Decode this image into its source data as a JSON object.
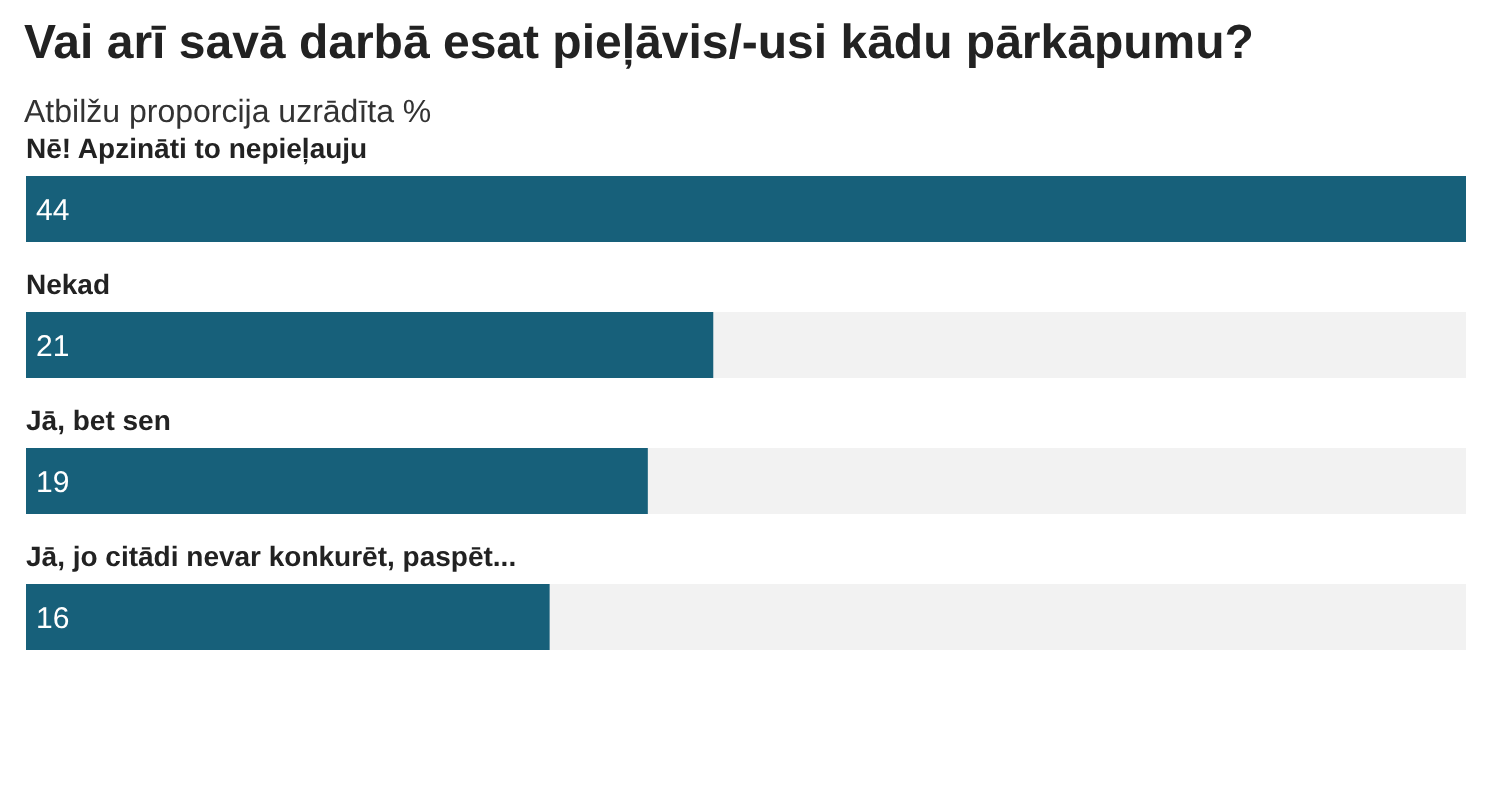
{
  "chart_data": {
    "type": "bar",
    "orientation": "horizontal",
    "title": "Vai arī savā darbā esat pieļāvis/-usi kādu pārkāpumu?",
    "subtitle": "Atbilžu proporcija uzrādīta %",
    "categories": [
      "Nē! Apzināti to nepieļauju",
      "Nekad",
      "Jā, bet sen",
      "Jā, jo citādi nevar konkurēt, paspēt..."
    ],
    "values": [
      44,
      21,
      19,
      16
    ],
    "color": "#17607a",
    "data_labels": true
  }
}
